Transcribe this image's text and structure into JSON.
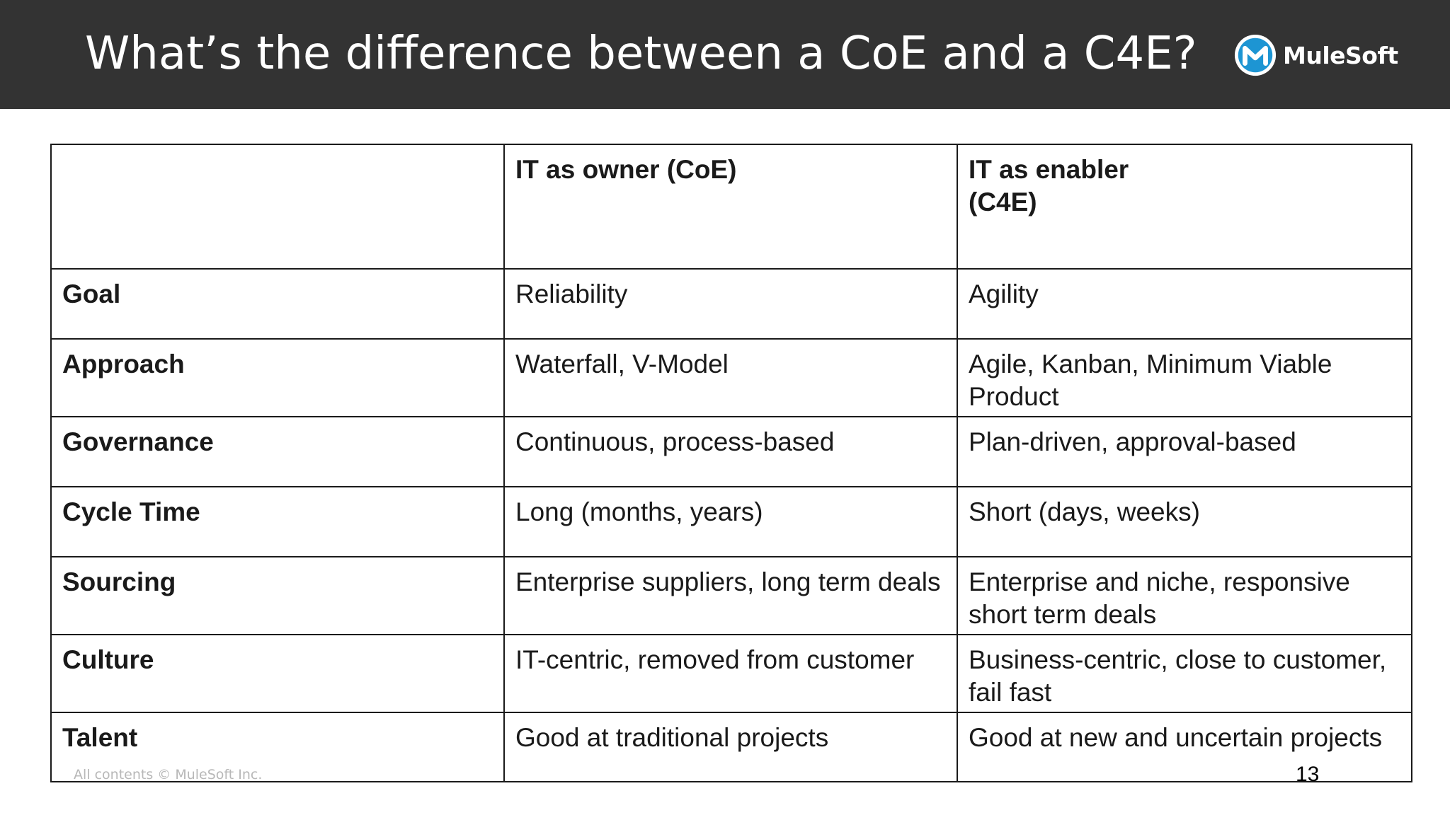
{
  "slide": {
    "title": "What’s the difference between a CoE and a C4E?",
    "logo_text": "MuleSoft",
    "logo_mark_icon": "mulesoft-m-icon",
    "footer_copyright": "All contents © MuleSoft Inc.",
    "page_number": "13"
  },
  "colors": {
    "header_bg": "#333333",
    "logo_blue": "#1d95d3",
    "text": "#1a1a1a"
  },
  "table": {
    "headers": [
      "",
      "IT as owner (CoE)",
      "IT as enabler\n(C4E)"
    ],
    "rows": [
      {
        "label": "Goal",
        "coe": "Reliability",
        "c4e": "Agility"
      },
      {
        "label": "Approach",
        "coe": "Waterfall, V-Model",
        "c4e": "Agile, Kanban, Minimum Viable Product"
      },
      {
        "label": "Governance",
        "coe": "Continuous, process-based",
        "c4e": "Plan-driven, approval-based"
      },
      {
        "label": "Cycle Time",
        "coe": "Long (months, years)",
        "c4e": "Short (days, weeks)"
      },
      {
        "label": "Sourcing",
        "coe": "Enterprise suppliers, long term deals",
        "c4e": "Enterprise and niche, responsive short term deals"
      },
      {
        "label": "Culture",
        "coe": "IT-centric, removed from customer",
        "c4e": "Business-centric, close to customer, fail fast"
      },
      {
        "label": "Talent",
        "coe": "Good at traditional projects",
        "c4e": "Good at new and uncertain projects"
      }
    ]
  }
}
